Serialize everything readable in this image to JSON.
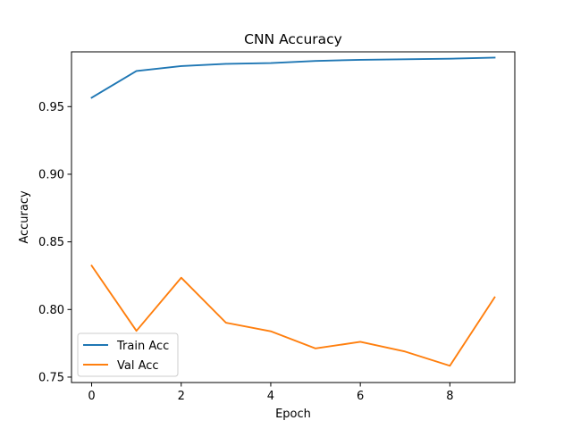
{
  "chart_data": {
    "type": "line",
    "title": "CNN Accuracy",
    "xlabel": "Epoch",
    "ylabel": "Accuracy",
    "x": [
      0,
      1,
      2,
      3,
      4,
      5,
      6,
      7,
      8,
      9
    ],
    "xlim": [
      -0.45,
      9.45
    ],
    "ylim": [
      0.746,
      0.9905
    ],
    "xticks": [
      0,
      2,
      4,
      6,
      8
    ],
    "xtick_labels": [
      "0",
      "2",
      "4",
      "6",
      "8"
    ],
    "yticks": [
      0.75,
      0.8,
      0.85,
      0.9,
      0.95
    ],
    "ytick_labels": [
      "0.75",
      "0.80",
      "0.85",
      "0.90",
      "0.95"
    ],
    "grid": false,
    "legend_position": "lower-left",
    "series": [
      {
        "name": "Train Acc",
        "color": "#1f77b4",
        "values": [
          0.9566,
          0.9763,
          0.98,
          0.9816,
          0.9822,
          0.9838,
          0.9846,
          0.985,
          0.9854,
          0.9862
        ]
      },
      {
        "name": "Val Acc",
        "color": "#ff7f0e",
        "values": [
          0.8324,
          0.7842,
          0.8235,
          0.7902,
          0.7839,
          0.7712,
          0.7761,
          0.7689,
          0.7584,
          0.809
        ]
      }
    ]
  }
}
